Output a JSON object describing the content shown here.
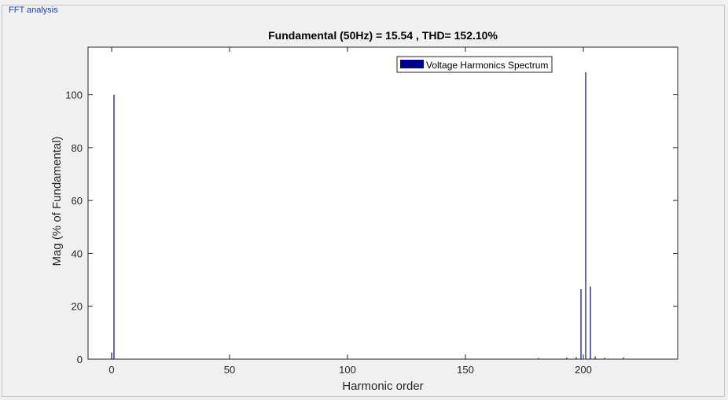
{
  "panel": {
    "title": "FFT analysis"
  },
  "chart_data": {
    "type": "bar",
    "title": "Fundamental (50Hz) = 15.54 , THD= 152.10%",
    "xlabel": "Harmonic order",
    "ylabel": "Mag (% of Fundamental)",
    "xlim": [
      -10,
      240
    ],
    "ylim": [
      0,
      118
    ],
    "xticks": [
      0,
      50,
      100,
      150,
      200
    ],
    "yticks": [
      0,
      20,
      40,
      60,
      80,
      100
    ],
    "grid": false,
    "legend": {
      "position": "top-right",
      "entries": [
        "Voltage Harmonics Spectrum"
      ]
    },
    "series": [
      {
        "name": "Voltage Harmonics Spectrum",
        "color": "#00008f",
        "x": [
          0,
          1,
          181,
          193,
          197,
          199,
          201,
          203,
          205,
          209,
          217
        ],
        "values": [
          2.5,
          100,
          0.4,
          0.6,
          0.7,
          26.5,
          108.5,
          27.5,
          1.0,
          0.5,
          0.6
        ]
      }
    ]
  }
}
